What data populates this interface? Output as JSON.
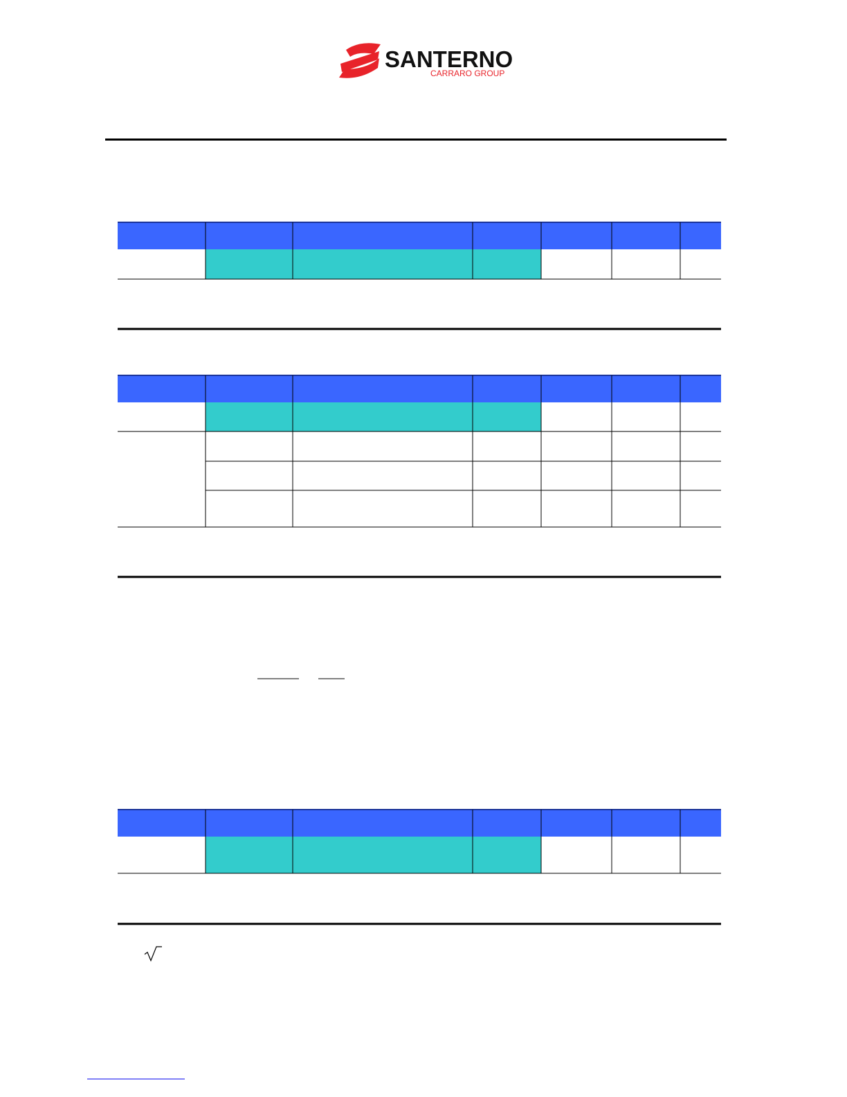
{
  "logo": {
    "name": "SANTERNO",
    "group": "CARRARO GROUP"
  }
}
